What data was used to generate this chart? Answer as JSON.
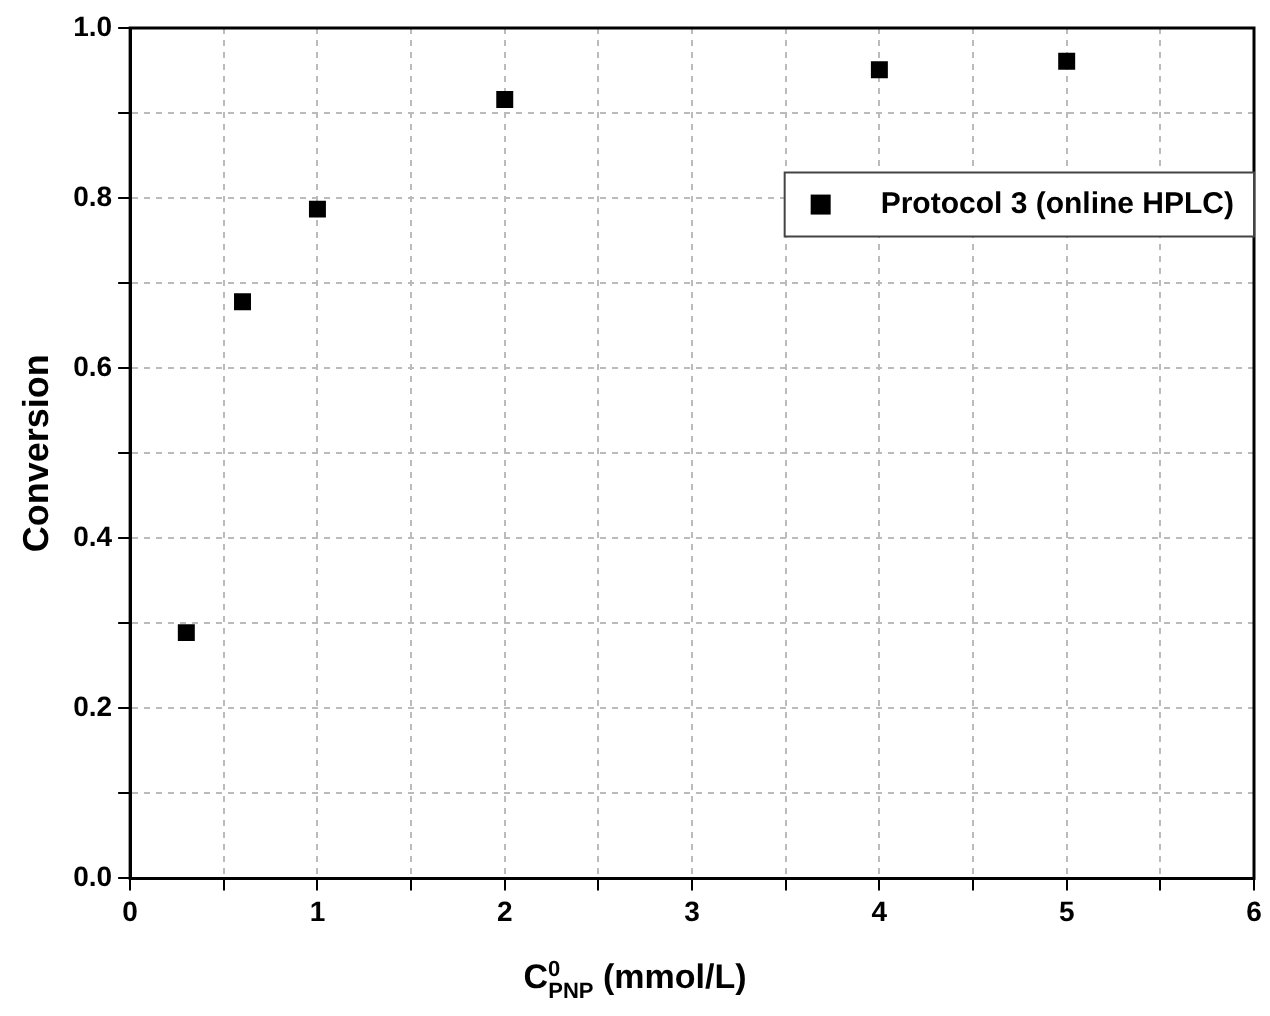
{
  "chart_data": {
    "type": "scatter",
    "xlabel": "C$^{0}$$_{PNP}$ (mmol/L)",
    "ylabel": "Conversion",
    "x": [
      0.3,
      0.6,
      1,
      2,
      4,
      5
    ],
    "series": [
      {
        "name": "Protocol 3 (online HPLC)",
        "color": "#000000",
        "values": [
          0.289,
          0.678,
          0.787,
          0.916,
          0.951,
          0.961
        ]
      }
    ],
    "xlim": [
      0,
      6
    ],
    "ylim": [
      0,
      1
    ],
    "xticks": [
      0,
      {
        "value": 0.5,
        "label": null
      },
      1,
      {
        "value": 1.5,
        "label": null
      },
      2,
      {
        "value": 2.5,
        "label": null
      },
      3,
      {
        "value": 3.5,
        "label": null
      },
      4,
      {
        "value": 4.5,
        "label": null
      },
      5,
      {
        "value": 5.5,
        "label": null
      },
      6
    ],
    "yticks": [
      {
        "value": 0,
        "label": "0.0"
      },
      {
        "value": 0.1,
        "label": null
      },
      {
        "value": 0.2,
        "label": "0.2"
      },
      {
        "value": 0.3,
        "label": null
      },
      {
        "value": 0.4,
        "label": "0.4"
      },
      {
        "value": 0.5,
        "label": null
      },
      {
        "value": 0.6,
        "label": "0.6"
      },
      {
        "value": 0.7,
        "label": null
      },
      {
        "value": 0.8,
        "label": "0.8"
      },
      {
        "value": 0.9,
        "label": null
      },
      {
        "value": 1,
        "label": "1.0"
      }
    ],
    "grid": true,
    "legend": "top right",
    "marker": "square"
  }
}
